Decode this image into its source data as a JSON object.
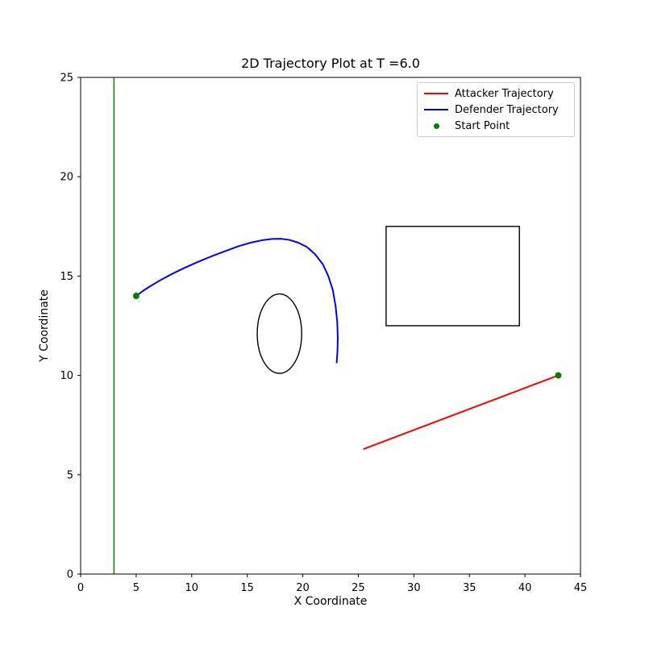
{
  "chart_data": {
    "type": "line",
    "title": "2D Trajectory Plot at T =6.0",
    "xlabel": "X Coordinate",
    "ylabel": "Y Coordinate",
    "xlim": [
      0,
      45
    ],
    "ylim": [
      0,
      25
    ],
    "x_ticks": [
      0,
      5,
      10,
      15,
      20,
      25,
      30,
      35,
      40,
      45
    ],
    "y_ticks": [
      0,
      5,
      10,
      15,
      20,
      25
    ],
    "grid": false,
    "legend": {
      "position": "top-right",
      "entries": [
        {
          "label": "Attacker Trajectory",
          "color": "#ff0000",
          "marker": "line"
        },
        {
          "label": "Defender Trajectory",
          "color": "#0000ff",
          "marker": "line"
        },
        {
          "label": "Start Point",
          "color": "#008000",
          "marker": "dot"
        }
      ]
    },
    "series": [
      {
        "name": "Attacker Trajectory",
        "color": "#ff0000",
        "points": [
          [
            25.5,
            6.3
          ],
          [
            43.0,
            10.0
          ]
        ]
      },
      {
        "name": "Defender Trajectory",
        "color": "#0000ff",
        "points": [
          [
            5.0,
            14.0
          ],
          [
            5.6,
            14.25
          ],
          [
            6.3,
            14.5
          ],
          [
            7.2,
            14.8
          ],
          [
            8.2,
            15.1
          ],
          [
            9.3,
            15.4
          ],
          [
            10.5,
            15.7
          ],
          [
            11.8,
            16.0
          ],
          [
            13.0,
            16.25
          ],
          [
            14.2,
            16.5
          ],
          [
            15.3,
            16.68
          ],
          [
            16.3,
            16.8
          ],
          [
            17.2,
            16.87
          ],
          [
            18.0,
            16.88
          ],
          [
            18.8,
            16.82
          ],
          [
            19.6,
            16.68
          ],
          [
            20.4,
            16.45
          ],
          [
            21.1,
            16.1
          ],
          [
            21.8,
            15.6
          ],
          [
            22.3,
            15.0
          ],
          [
            22.7,
            14.3
          ],
          [
            22.95,
            13.5
          ],
          [
            23.1,
            12.7
          ],
          [
            23.15,
            11.9
          ],
          [
            23.12,
            11.2
          ],
          [
            23.05,
            10.65
          ]
        ]
      }
    ],
    "start_points": [
      [
        5.0,
        14.0
      ],
      [
        43.0,
        10.0
      ]
    ],
    "start_point_color": "#008000",
    "shapes": [
      {
        "type": "vline",
        "x": 3,
        "color": "#008000"
      },
      {
        "type": "ellipse",
        "cx": 17.9,
        "cy": 12.1,
        "rx": 2.0,
        "ry": 2.0,
        "stroke": "#000000"
      },
      {
        "type": "rect",
        "x0": 27.5,
        "y0": 12.5,
        "x1": 39.5,
        "y1": 17.5,
        "stroke": "#000000"
      }
    ]
  }
}
